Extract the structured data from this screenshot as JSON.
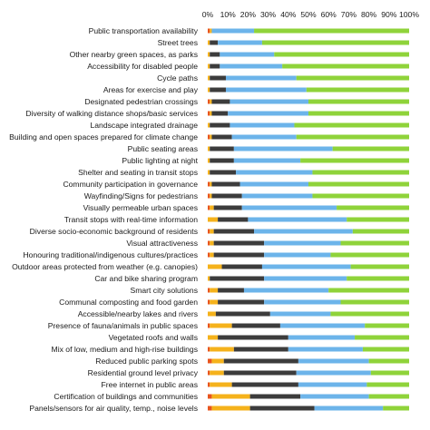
{
  "chart_data": {
    "type": "bar",
    "orientation": "horizontal",
    "stacked": true,
    "normalized": true,
    "x_ticks": [
      "0%",
      "10%",
      "20%",
      "30%",
      "40%",
      "50%",
      "60%",
      "70%",
      "80%",
      "90%",
      "100%"
    ],
    "xlim": [
      0,
      100
    ],
    "grid": false,
    "legend": "none",
    "categories": [
      "Public transportation availability",
      "Street trees",
      "Other nearby green spaces, as parks",
      "Accessibility for disabled people",
      "Cycle paths",
      "Areas for exercise and play",
      "Designated pedestrian crossings",
      "Diversity of walking distance shops/basic services",
      "Landscape integrated drainage",
      "Building and open spaces prepared for climate change",
      "Public seating areas",
      "Public lighting at night",
      "Shelter and seating in transit stops",
      "Community participation in governance",
      "Wayfinding/Signs for pedestrians",
      "Visually permeable urban spaces",
      "Transit stops with real-time information",
      "Diverse socio-economic background of residents",
      "Visual attractiveness",
      "Honouring traditional/indigenous cultures/practices",
      "Outdoor areas protected from weather (e.g. canopies)",
      "Car and bike sharing program",
      "Smart city solutions",
      "Communal composting and food garden",
      "Accessible/nearby lakes and rivers",
      "Presence of fauna/animals in public spaces",
      "Vegetated roofs and walls",
      "Mix of low, medium and high-rise buildings",
      "Reduced public parking spots",
      "Residential ground level privacy",
      "Free internet in public areas",
      "Certification of buildings and communities",
      "Panels/sensors for air quality, temp., noise levels"
    ],
    "series": [
      {
        "color": "#e8541e",
        "values": [
          1,
          0,
          0,
          0,
          0,
          0,
          1,
          1,
          0,
          1,
          0,
          0,
          0,
          1,
          1,
          1,
          0,
          1,
          1,
          1,
          0,
          0,
          1,
          1,
          0,
          1,
          0,
          1,
          2,
          1,
          1,
          2,
          2
        ]
      },
      {
        "color": "#f5b21b",
        "values": [
          1,
          1,
          1,
          1,
          1,
          1,
          1,
          1,
          1,
          1,
          1,
          1,
          1,
          1,
          1,
          2,
          5,
          2,
          2,
          2,
          7,
          1,
          4,
          4,
          4,
          11,
          5,
          12,
          6,
          7,
          11,
          19,
          19
        ]
      },
      {
        "color": "#3c3c3c",
        "values": [
          0,
          4,
          5,
          5,
          8,
          8,
          9,
          8,
          10,
          10,
          12,
          12,
          13,
          14,
          15,
          14,
          15,
          20,
          25,
          25,
          20,
          27,
          13,
          23,
          27,
          24,
          35,
          27,
          37,
          36,
          33,
          25,
          32
        ]
      },
      {
        "color": "#6cb4ea",
        "values": [
          21,
          22,
          27,
          31,
          35,
          40,
          39,
          40,
          32,
          32,
          49,
          33,
          38,
          34,
          35,
          47,
          49,
          49,
          38,
          33,
          44,
          41,
          42,
          38,
          30,
          42,
          33,
          37,
          35,
          37,
          34,
          34,
          34
        ]
      },
      {
        "color": "#8fd33a",
        "values": [
          77,
          73,
          67,
          63,
          56,
          51,
          50,
          50,
          57,
          56,
          38,
          54,
          48,
          50,
          48,
          36,
          31,
          28,
          34,
          39,
          29,
          31,
          40,
          34,
          39,
          22,
          27,
          23,
          20,
          19,
          21,
          20,
          13
        ]
      }
    ]
  }
}
